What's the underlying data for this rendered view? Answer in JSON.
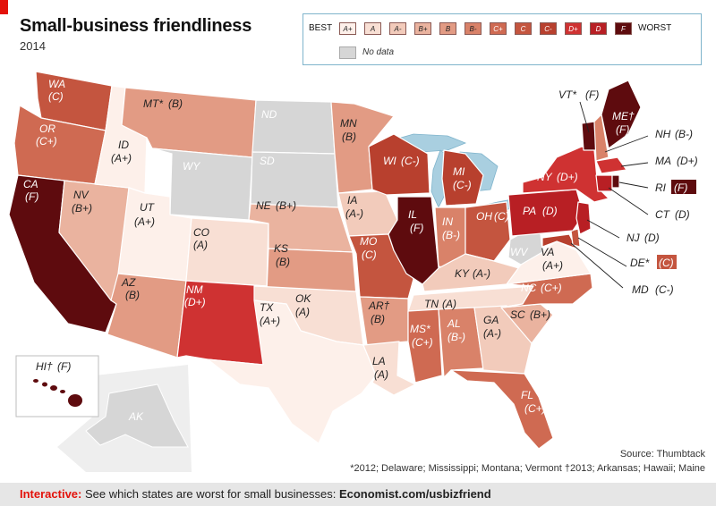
{
  "header": {
    "title": "Small-business friendliness",
    "subtitle": "2014"
  },
  "legend": {
    "best_label": "BEST",
    "worst_label": "WORST",
    "grades": [
      {
        "g": "A+",
        "color": "#fdf0ea"
      },
      {
        "g": "A",
        "color": "#f8dfd4"
      },
      {
        "g": "A-",
        "color": "#f2cbbb"
      },
      {
        "g": "B+",
        "color": "#eab39f"
      },
      {
        "g": "B",
        "color": "#e29b84"
      },
      {
        "g": "B-",
        "color": "#d98269"
      },
      {
        "g": "C+",
        "color": "#cf6a52"
      },
      {
        "g": "C",
        "color": "#c4553f"
      },
      {
        "g": "C-",
        "color": "#b8402e"
      },
      {
        "g": "D+",
        "color": "#cf3232"
      },
      {
        "g": "D",
        "color": "#b81f24"
      },
      {
        "g": "F",
        "color": "#5e0b0e"
      }
    ],
    "nodata_label": "No data",
    "nodata_color": "#d6d6d6"
  },
  "states": [
    {
      "n": "WA",
      "g": "(C)"
    },
    {
      "n": "OR",
      "g": "(C+)"
    },
    {
      "n": "CA",
      "g": "(F)"
    },
    {
      "n": "ID",
      "g": "(A+)"
    },
    {
      "n": "NV",
      "g": "(B+)"
    },
    {
      "n": "MT*",
      "g": "(B)"
    },
    {
      "n": "WY",
      "g": ""
    },
    {
      "n": "UT",
      "g": "(A+)"
    },
    {
      "n": "AZ",
      "g": "(B)"
    },
    {
      "n": "CO",
      "g": "(A)"
    },
    {
      "n": "NM",
      "g": "(D+)"
    },
    {
      "n": "ND",
      "g": ""
    },
    {
      "n": "SD",
      "g": ""
    },
    {
      "n": "NE",
      "g": "(B+)"
    },
    {
      "n": "KS",
      "g": "(B)"
    },
    {
      "n": "OK",
      "g": "(A)"
    },
    {
      "n": "TX",
      "g": "(A+)"
    },
    {
      "n": "MN",
      "g": "(B)"
    },
    {
      "n": "IA",
      "g": "(A-)"
    },
    {
      "n": "MO",
      "g": "(C)"
    },
    {
      "n": "AR†",
      "g": "(B)"
    },
    {
      "n": "LA",
      "g": "(A)"
    },
    {
      "n": "WI",
      "g": "(C-)"
    },
    {
      "n": "IL",
      "g": "(F)"
    },
    {
      "n": "MI",
      "g": "(C-)"
    },
    {
      "n": "IN",
      "g": "(B-)"
    },
    {
      "n": "OH",
      "g": "(C)"
    },
    {
      "n": "KY",
      "g": "(A-)"
    },
    {
      "n": "TN",
      "g": "(A)"
    },
    {
      "n": "MS*",
      "g": "(C+)"
    },
    {
      "n": "AL",
      "g": "(B-)"
    },
    {
      "n": "GA",
      "g": "(A-)"
    },
    {
      "n": "FL",
      "g": "(C+)"
    },
    {
      "n": "SC",
      "g": "(B+)"
    },
    {
      "n": "NC",
      "g": "(C+)"
    },
    {
      "n": "VA",
      "g": "(A+)"
    },
    {
      "n": "WV",
      "g": ""
    },
    {
      "n": "PA",
      "g": "(D)"
    },
    {
      "n": "NY",
      "g": "(D+)"
    },
    {
      "n": "ME†",
      "g": "(F)"
    },
    {
      "n": "AK",
      "g": ""
    }
  ],
  "callouts": [
    {
      "n": "VT*",
      "g": "(F)"
    },
    {
      "n": "NH",
      "g": "(B-)"
    },
    {
      "n": "MA",
      "g": "(D+)"
    },
    {
      "n": "RI",
      "g": "(F)"
    },
    {
      "n": "CT",
      "g": "(D)"
    },
    {
      "n": "NJ",
      "g": "(D)"
    },
    {
      "n": "DE*",
      "g": "(C)"
    },
    {
      "n": "MD",
      "g": "(C-)"
    },
    {
      "n": "HI†",
      "g": "(F)"
    }
  ],
  "source": "Source: Thumbtack",
  "notes": "*2012; Delaware; Mississippi; Montana; Vermont   †2013; Arkansas; Hawaii; Maine",
  "footer": {
    "keyword": "Interactive:",
    "text": " See which states are worst for small businesses: ",
    "url": "Economist.com/usbizfriend"
  }
}
